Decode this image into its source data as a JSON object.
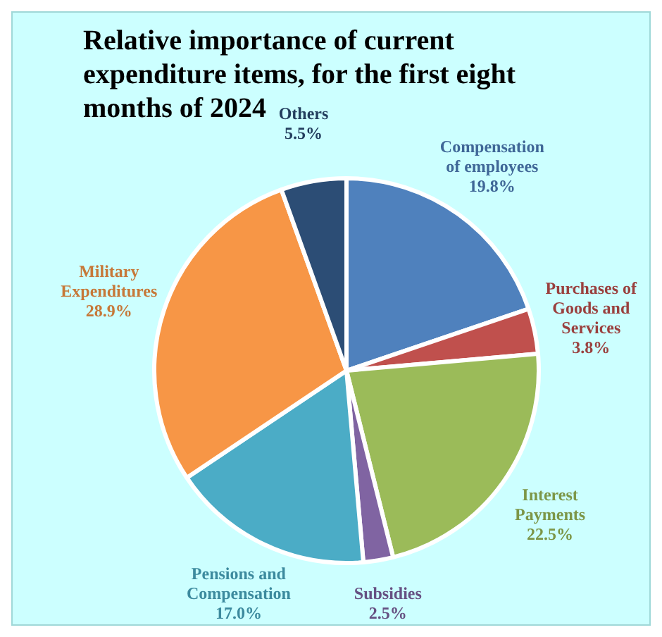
{
  "chart_data": {
    "type": "pie",
    "title": "Relative importance of current expenditure items,  for the first eight months of  2024",
    "categories": [
      "Compensation of employees",
      "Purchases of Goods and Services",
      "Interest Payments",
      "Subsidies",
      "Pensions and Compensation",
      "Military Expenditures",
      "Others"
    ],
    "values": [
      19.8,
      3.8,
      22.5,
      2.5,
      17.0,
      28.9,
      5.5
    ],
    "value_labels": [
      "19.8%",
      "3.8%",
      "22.5%",
      "2.5%",
      "17.0%",
      "28.9%",
      "5.5%"
    ],
    "colors": [
      "#4f81bd",
      "#c0504d",
      "#9bbb59",
      "#8064a2",
      "#4bacc6",
      "#f79646",
      "#2c4d75"
    ],
    "legend": false
  }
}
